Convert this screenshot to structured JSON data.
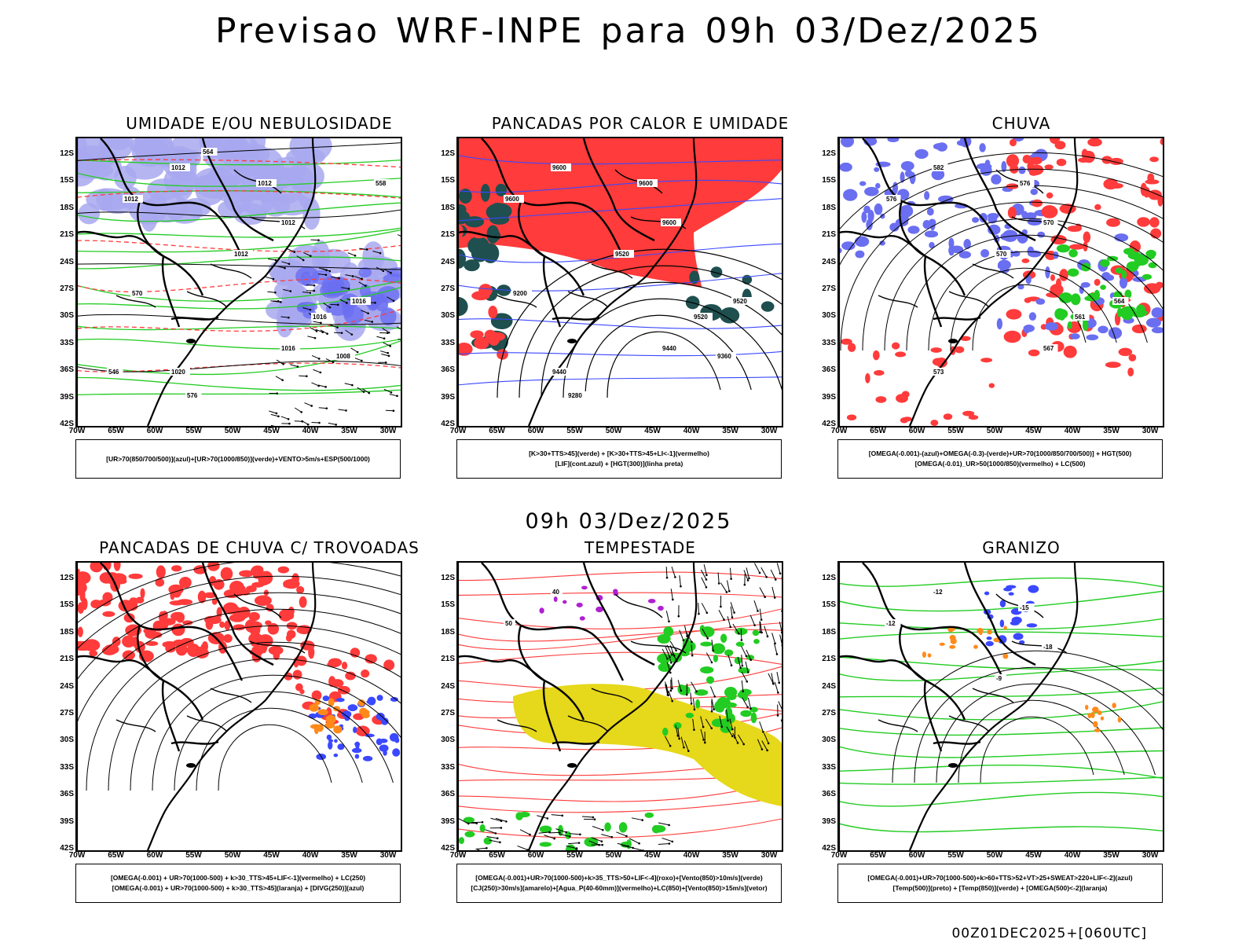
{
  "main_title": "Previsao WRF-INPE  para 09h 03/Dez/2025",
  "subtitle": "09h 03/Dez/2025",
  "footer": "00Z01DEC2025+[060UTC]",
  "lat_ticks": [
    "12S",
    "15S",
    "18S",
    "21S",
    "24S",
    "27S",
    "30S",
    "33S",
    "36S",
    "39S",
    "42S"
  ],
  "lon_ticks": [
    "70W",
    "65W",
    "60W",
    "55W",
    "50W",
    "45W",
    "40W",
    "35W",
    "30W"
  ],
  "colors": {
    "blue": "#6a6ef0",
    "green": "#22cc22",
    "red": "#ff3b3b",
    "orange": "#ff8a1a",
    "yellow": "#e6d81a",
    "purple": "#b020d0",
    "teal": "#1f4f4f",
    "lavender": "#a8a8f0"
  },
  "panels": [
    {
      "id": "umidade",
      "title": "UMIDADE E/OU NEBULOSIDADE",
      "legend": [
        "[UR>70(850/700/500)](azul)+[UR>70(1000/850)](verde)+VENTO>5m/s+ESP(500/1000)"
      ],
      "contour_labels": [
        "1012",
        "1012",
        "1012",
        "1012",
        "1012",
        "1016",
        "1016",
        "1016",
        "1020",
        "1008",
        "576",
        "570",
        "564",
        "558",
        "546"
      ]
    },
    {
      "id": "pancadas-calor",
      "title": "PANCADAS POR CALOR E UMIDADE",
      "legend": [
        "[K>30+TTS>45](verde) + [K>30+TTS>45+LI<-1](vermelho)",
        "[LIF](cont.azul) + [HGT(300)](linha preta)"
      ],
      "contour_labels": [
        "9600",
        "9600",
        "9600",
        "9600",
        "9520",
        "9520",
        "9520",
        "9440",
        "9440",
        "9360",
        "9280",
        "9200"
      ]
    },
    {
      "id": "chuva",
      "title": "CHUVA",
      "legend": [
        "[OMEGA(-0.001)-(azul)+OMEGA(-0.3)-(verde)+UR>70(1000/850/700/500)] + HGT(500)",
        "[OMEGA(-0.01)_UR>50(1000/850)(vermelho) + LC(500)"
      ],
      "contour_labels": [
        "582",
        "576",
        "576",
        "570",
        "570",
        "564",
        "561",
        "567",
        "573"
      ]
    },
    {
      "id": "pancadas-trovoadas",
      "title": "PANCADAS DE CHUVA C/ TROVOADAS",
      "legend": [
        "[OMEGA(-0.001) + UR>70(1000-500) + k>30_TTS>45+LIF<-1](vermelho) + LC(250)",
        "[OMEGA(-0.001) + UR>70(1000-500) + k>30_TTS>45](laranja) + [DIVG(250)](azul)"
      ],
      "contour_labels": []
    },
    {
      "id": "tempestade",
      "title": "TEMPESTADE",
      "legend": [
        "[OMEGA(-0.001)+UR>70(1000-500)+k>35_TTS>50+LIF<-4](roxo)+[Vento(850)>10m/s](verde)",
        "[CJ(250)>30m/s](amarelo)+[Agua_P(40-60mm)](vermelho)+LC(850)+[Vento(850)>15m/s](vetor)"
      ],
      "contour_labels": [
        "40",
        "50"
      ]
    },
    {
      "id": "granizo",
      "title": "GRANIZO",
      "legend": [
        "[OMEGA(-0.001)+UR>70(1000-500)+k>60+TTS>52+VT>25+SWEAT>220+LIF<-2](azul)",
        "[Temp(500)](preto) + [Temp(850)](verde) + [OMEGA(500)<-2](laranja)"
      ],
      "contour_labels": [
        "-12",
        "-12",
        "-15",
        "-18",
        "-9"
      ]
    }
  ]
}
